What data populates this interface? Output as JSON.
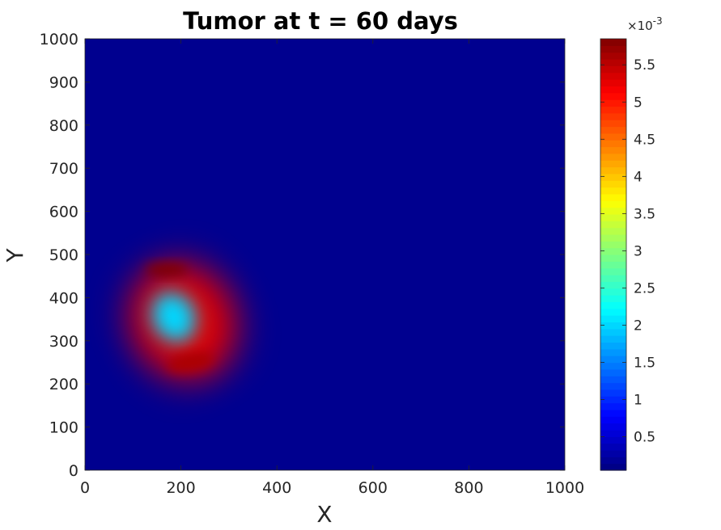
{
  "chart_data": {
    "type": "heatmap",
    "title": "Tumor at t = 60 days",
    "xlabel": "X",
    "ylabel": "Y",
    "xlim": [
      0,
      1000
    ],
    "ylim": [
      0,
      1000
    ],
    "xticks": [
      0,
      200,
      400,
      600,
      800,
      1000
    ],
    "yticks": [
      0,
      100,
      200,
      300,
      400,
      500,
      600,
      700,
      800,
      900,
      1000
    ],
    "grid": false,
    "colormap": "jet",
    "background_color": "#00008f",
    "colorbar": {
      "exponent_label": "×10",
      "exponent": "-3",
      "min": 0.05,
      "max": 5.85,
      "ticks": [
        0.5,
        1,
        1.5,
        2,
        2.5,
        3,
        3.5,
        4,
        4.5,
        5,
        5.5
      ],
      "tick_labels": [
        "0.5",
        "1",
        "1.5",
        "2",
        "2.5",
        "3",
        "3.5",
        "4",
        "4.5",
        "5",
        "5.5"
      ]
    },
    "features": [
      {
        "name": "ring",
        "cx": 205,
        "cy": 345,
        "rx": 110,
        "ry": 140,
        "rotation_deg": -25,
        "value": 5.3
      },
      {
        "name": "core",
        "cx": 185,
        "cy": 355,
        "rx": 45,
        "ry": 60,
        "rotation_deg": -25,
        "value": 2.0
      },
      {
        "name": "hotspot",
        "cx": 170,
        "cy": 465,
        "rx": 45,
        "ry": 15,
        "rotation_deg": 0,
        "value": 5.85
      },
      {
        "name": "hotspot",
        "cx": 220,
        "cy": 250,
        "rx": 50,
        "ry": 20,
        "rotation_deg": -10,
        "value": 5.6
      }
    ]
  }
}
